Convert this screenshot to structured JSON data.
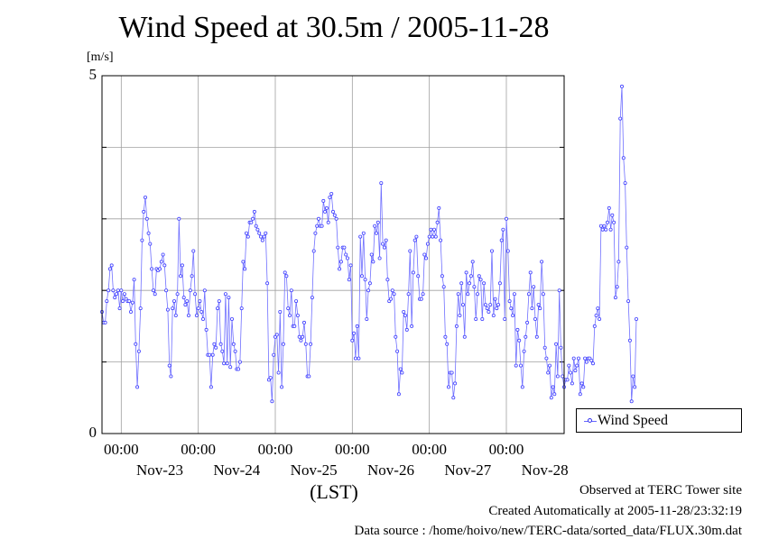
{
  "chart_data": {
    "type": "line",
    "title": "Wind Speed at 30.5m / 2005-11-28",
    "ylabel": "[m/s]",
    "xlabel": "(LST)",
    "ylim": [
      0,
      5
    ],
    "yticks": [
      0,
      1,
      2,
      3,
      4,
      5
    ],
    "ytick_labels": [
      "0",
      "5"
    ],
    "xlim": [
      0,
      144
    ],
    "x_unit": "hours since 2005-11-22 18:00",
    "xticks_time": [
      {
        "x": 6,
        "label": "00:00"
      },
      {
        "x": 30,
        "label": "00:00"
      },
      {
        "x": 54,
        "label": "00:00"
      },
      {
        "x": 78,
        "label": "00:00"
      },
      {
        "x": 102,
        "label": "00:00"
      },
      {
        "x": 126,
        "label": "00:00"
      }
    ],
    "xticks_date": [
      {
        "x": 18,
        "label": "Nov-23"
      },
      {
        "x": 42,
        "label": "Nov-24"
      },
      {
        "x": 66,
        "label": "Nov-25"
      },
      {
        "x": 90,
        "label": "Nov-26"
      },
      {
        "x": 114,
        "label": "Nov-27"
      },
      {
        "x": 138,
        "label": "Nov-28"
      }
    ],
    "grid": true,
    "legend_position": "right-bottom",
    "series": [
      {
        "name": "Wind Speed",
        "color": "#4040ff",
        "interval_hours": 0.5,
        "values": [
          1.7,
          1.55,
          1.55,
          1.85,
          2,
          2.3,
          2.35,
          2,
          1.9,
          1.95,
          2,
          1.75,
          2,
          1.85,
          1.95,
          1.88,
          1.85,
          1.85,
          1.7,
          1.83,
          2.15,
          1.25,
          0.65,
          1.15,
          1.75,
          2.7,
          3.1,
          3.3,
          3,
          2.8,
          2.65,
          2.3,
          2,
          1.95,
          2.3,
          2.28,
          2.3,
          2.4,
          2.5,
          2.35,
          2,
          1.73,
          0.95,
          0.8,
          1.75,
          1.85,
          1.65,
          1.95,
          3,
          2.2,
          2.35,
          1.9,
          1.8,
          1.85,
          1.65,
          2,
          2.2,
          2.55,
          1.95,
          1.65,
          1.75,
          1.85,
          1.7,
          1.6,
          2,
          1.45,
          1.1,
          1.1,
          0.65,
          1.1,
          1.25,
          1.2,
          1.75,
          1.85,
          1.25,
          1.15,
          0.98,
          1.95,
          0.98,
          1.9,
          0.93,
          1.6,
          1.25,
          1.15,
          0.9,
          0.9,
          1,
          1.75,
          2.4,
          2.3,
          2.8,
          2.75,
          2.95,
          2.95,
          3,
          3.1,
          2.9,
          2.85,
          2.8,
          2.75,
          2.7,
          2.75,
          2.8,
          2.1,
          0.75,
          0.78,
          0.45,
          1.1,
          1.35,
          1.38,
          0.85,
          1.7,
          0.65,
          1.25,
          2.25,
          2.2,
          1.75,
          1.65,
          2,
          1.5,
          1.5,
          1.85,
          1.65,
          1.35,
          1.3,
          1.35,
          1.55,
          1.25,
          0.8,
          0.8,
          1.25,
          1.9,
          2.55,
          2.8,
          2.9,
          3,
          2.9,
          2.9,
          3.25,
          3.1,
          3.15,
          2.95,
          3.3,
          3.35,
          3.1,
          3.05,
          3,
          2.6,
          2.3,
          2.4,
          2.6,
          2.6,
          2.5,
          2.45,
          2.15,
          2.35,
          1.3,
          1.4,
          1.05,
          1.5,
          1.05,
          2.75,
          2.2,
          2.8,
          2.15,
          1.6,
          2,
          2.1,
          2.5,
          2.4,
          2.9,
          2.8,
          2.95,
          2.45,
          3.5,
          2.65,
          2.6,
          2.7,
          2.15,
          1.85,
          1.88,
          2,
          1.95,
          1.35,
          1.15,
          0.55,
          0.9,
          0.85,
          1.7,
          1.65,
          1.45,
          1.95,
          2.55,
          1.5,
          2.25,
          2.7,
          2.75,
          2.2,
          1.88,
          1.88,
          1.95,
          2.5,
          2.45,
          2.65,
          2.75,
          2.85,
          2.75,
          2.85,
          2.75,
          2.95,
          3.15,
          2.7,
          2.2,
          2.05,
          1.35,
          1.25,
          0.65,
          0.85,
          0.85,
          0.5,
          0.7,
          1.5,
          1.95,
          1.65,
          2.1,
          1.8,
          1.35,
          2.25,
          1.95,
          2.1,
          2.2,
          2.4,
          2.05,
          1.6,
          1.95,
          2.2,
          2.15,
          1.6,
          2.1,
          1.8,
          1.75,
          1.7,
          1.8,
          2.55,
          1.65,
          1.88,
          1.75,
          1.8,
          2.1,
          2.7,
          2.85,
          1.6,
          3,
          2.55,
          1.85,
          1.75,
          1.65,
          1.95,
          0.95,
          1.45,
          1.3,
          0.95,
          0.65,
          1.15,
          1.35,
          1.55,
          1.95,
          2.25,
          1.75,
          2.05,
          1.6,
          1.35,
          1.8,
          1.75,
          2.4,
          1.95,
          1.2,
          1.05,
          0.85,
          0.95,
          0.5,
          0.65,
          0.55,
          1.25,
          0.8,
          2,
          1.2,
          0.8,
          0.65,
          0.75,
          0.75,
          0.95,
          0.85,
          0.7,
          1.05,
          0.88,
          0.95,
          1.05,
          0.55,
          0.7,
          0.65,
          1.05,
          1,
          1.05,
          1.05,
          1.02,
          0.98,
          1.5,
          1.65,
          1.75,
          1.6,
          2.9,
          2.85,
          2.9,
          2.85,
          2.95,
          3.15,
          2.85,
          3.05,
          2.95,
          1.9,
          2.05,
          2.4,
          4.4,
          4.85,
          3.85,
          3.5,
          2.6,
          1.85,
          1.3,
          0.45,
          0.8,
          0.65,
          1.6
        ]
      }
    ]
  },
  "footer": {
    "line1": "Observed at TERC Tower site",
    "line2": "Created Automatically at 2005-11-28/23:32:19",
    "line3": "Data source : /home/hoivo/new/TERC-data/sorted_data/FLUX.30m.dat"
  }
}
